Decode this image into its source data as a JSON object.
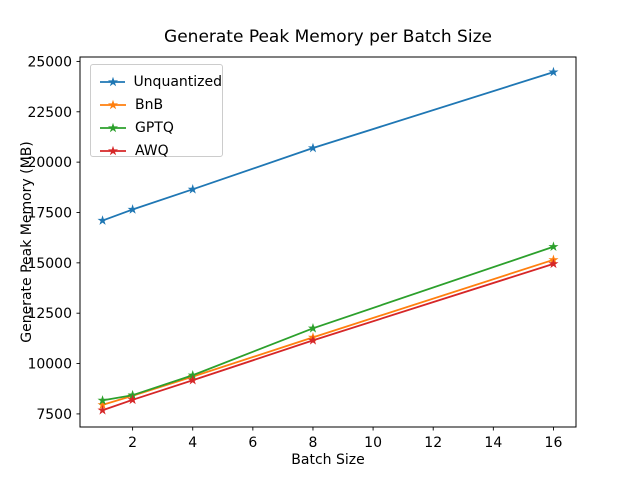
{
  "chart_data": {
    "type": "line",
    "title": "Generate Peak Memory per Batch Size",
    "xlabel": "Batch Size",
    "ylabel": "Generate Peak Memory (MB)",
    "x": [
      1,
      2,
      4,
      8,
      16
    ],
    "series": [
      {
        "name": "Unquantized",
        "color": "#1f77b4",
        "marker": "star",
        "values": [
          17100,
          17650,
          18650,
          20700,
          24470
        ]
      },
      {
        "name": "BnB",
        "color": "#ff7f0e",
        "marker": "star",
        "values": [
          7950,
          8400,
          9350,
          11300,
          15150
        ]
      },
      {
        "name": "GPTQ",
        "color": "#2ca02c",
        "marker": "star",
        "values": [
          8170,
          8430,
          9420,
          11750,
          15800
        ]
      },
      {
        "name": "AWQ",
        "color": "#d62728",
        "marker": "star",
        "values": [
          7680,
          8200,
          9170,
          11150,
          14950
        ]
      }
    ],
    "x_ticks": [
      2,
      4,
      6,
      8,
      10,
      12,
      14,
      16
    ],
    "y_ticks": [
      7500,
      10000,
      12500,
      15000,
      17500,
      20000,
      22500,
      25000
    ],
    "xlim": [
      0.25,
      16.75
    ],
    "ylim": [
      6850,
      25220
    ],
    "grid": false,
    "legend_position": "upper left",
    "axis_color": "#000000",
    "text_color": "#000000",
    "background": "#ffffff"
  }
}
